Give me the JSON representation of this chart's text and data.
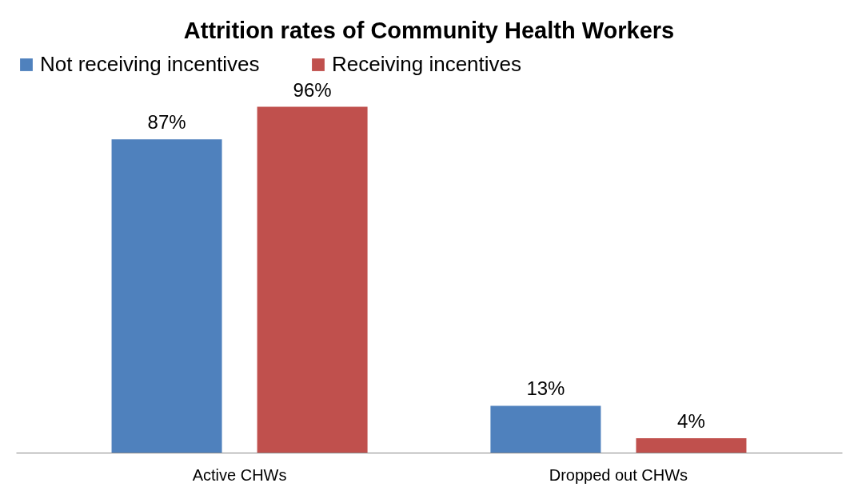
{
  "chart_data": {
    "type": "bar",
    "title": "Attrition rates of Community Health Workers",
    "categories": [
      "Active CHWs",
      "Dropped out CHWs"
    ],
    "series": [
      {
        "name": "Not receiving incentives",
        "color": "#4f81bd",
        "values": [
          87,
          13
        ],
        "value_labels": [
          "87%",
          "13%"
        ]
      },
      {
        "name": "Receiving incentives",
        "color": "#c0504d",
        "values": [
          96,
          4
        ],
        "value_labels": [
          "96%",
          "4%"
        ]
      }
    ],
    "legend": "top",
    "grid": false
  }
}
